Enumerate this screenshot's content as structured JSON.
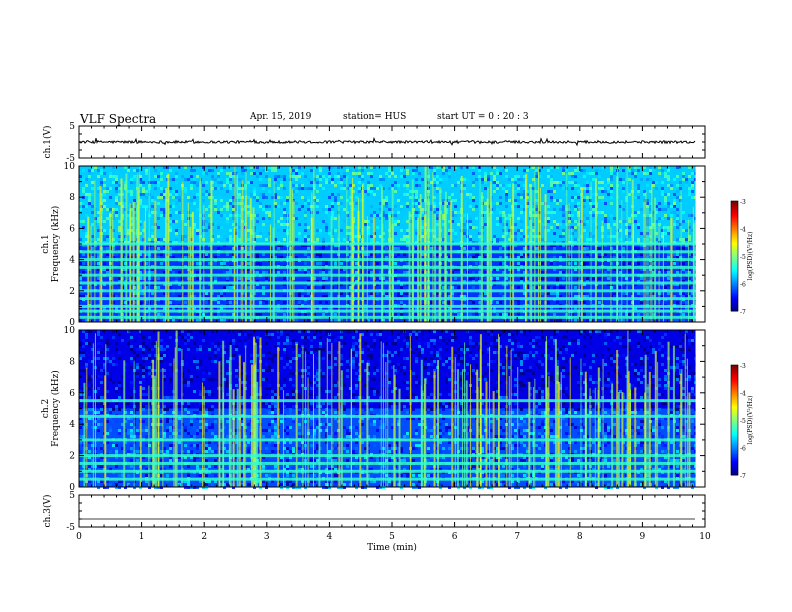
{
  "header": {
    "title": "VLF Spectra",
    "date": "Apr. 15, 2019",
    "station": "station= HUS",
    "start": "start  UT =   0  : 20 : 3"
  },
  "chart_data": [
    {
      "type": "line",
      "panel": "ch1_waveform",
      "ylabel": "ch.1(V)",
      "ylim": [
        -5,
        5
      ],
      "yticks": [
        "5",
        "-5"
      ],
      "xlim": [
        0,
        10
      ],
      "baseline_value": 0,
      "data_extent_min": 9.85,
      "color": "#000000"
    },
    {
      "type": "heatmap",
      "panel": "ch1_spectrogram",
      "ylabel": "ch.1",
      "ylabel2": "Frequency (kHz)",
      "ylim": [
        0,
        10
      ],
      "yticks": [
        "0",
        "2",
        "4",
        "6",
        "8",
        "10"
      ],
      "xlim": [
        0,
        10
      ],
      "data_extent_min": 9.85,
      "colorbar": {
        "label": "log(PSD)(V²/Hz)",
        "range": [
          -7,
          -3
        ],
        "ticks": [
          "-3",
          "-4",
          "-5",
          "-6",
          "-7"
        ]
      },
      "band_freqs_khz": [
        0.3,
        0.7,
        1.0,
        1.5,
        2.0,
        2.5,
        3.0,
        3.5,
        4.0,
        4.5,
        5.0
      ],
      "upper_background_level": -5.7,
      "lower_background_level": -6.3
    },
    {
      "type": "heatmap",
      "panel": "ch2_spectrogram",
      "ylabel": "ch.2",
      "ylabel2": "Frequency (kHz)",
      "ylim": [
        0,
        10
      ],
      "yticks": [
        "0",
        "2",
        "4",
        "6",
        "8",
        "10"
      ],
      "xlim": [
        0,
        10
      ],
      "data_extent_min": 9.85,
      "colorbar": {
        "label": "log(PSD)(V²/Hz)",
        "range": [
          -7,
          -3
        ],
        "ticks": [
          "-3",
          "-4",
          "-5",
          "-6",
          "-7"
        ]
      },
      "band_freqs_khz": [
        0.5,
        1.0,
        1.5,
        2.0,
        3.0,
        4.5,
        5.5
      ],
      "upper_background_level": -6.6,
      "lower_background_level": -6.2
    },
    {
      "type": "line",
      "panel": "ch3_waveform",
      "ylabel": "ch.3(V)",
      "ylim": [
        -5,
        5
      ],
      "yticks": [
        "5",
        "-5"
      ],
      "xlim": [
        0,
        10
      ],
      "baseline_value": -2.5,
      "data_extent_min": 9.85,
      "color": "#000000",
      "xlabel": "Time (min)",
      "xticks": [
        "0",
        "1",
        "2",
        "3",
        "4",
        "5",
        "6",
        "7",
        "8",
        "9",
        "10"
      ]
    }
  ]
}
